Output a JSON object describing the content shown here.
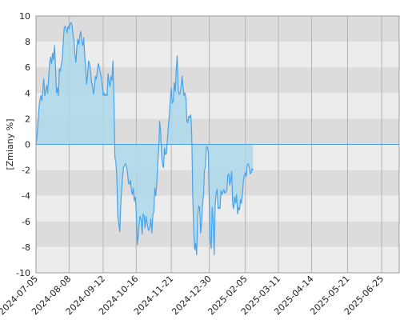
{
  "chart_data": {
    "type": "area",
    "title": "",
    "xlabel": "",
    "ylabel": "[Zmiany %]",
    "ylim": [
      -10,
      10
    ],
    "y_ticks": [
      -10,
      -8,
      -6,
      -4,
      -2,
      0,
      2,
      4,
      6,
      8,
      10
    ],
    "x_ticks": [
      "2024-07-05",
      "2024-08-08",
      "2024-09-12",
      "2024-10-16",
      "2024-11-21",
      "2024-12-30",
      "2025-02-05",
      "2025-03-11",
      "2025-04-14",
      "2025-05-21",
      "2025-06-25"
    ],
    "x_range": [
      "2024-07-05",
      "2025-07-13"
    ],
    "grid": "vertical lines at ticks, alternating horizontal bands",
    "colors": {
      "line": "#4aa3e8",
      "fill": "#add8ea",
      "band_dark": "#dcdcdc",
      "band_light": "#ececec",
      "grid": "#b4b4b4"
    },
    "series": [
      {
        "values": [
          [
            "2024-07-05",
            0.0
          ],
          [
            "2024-07-06",
            0.6
          ],
          [
            "2024-07-07",
            1.6
          ],
          [
            "2024-07-08",
            2.8
          ],
          [
            "2024-07-09",
            3.5
          ],
          [
            "2024-07-10",
            3.8
          ],
          [
            "2024-07-11",
            3.4
          ],
          [
            "2024-07-12",
            4.3
          ],
          [
            "2024-07-13",
            5.1
          ],
          [
            "2024-07-14",
            3.8
          ],
          [
            "2024-07-15",
            4.2
          ],
          [
            "2024-07-16",
            4.6
          ],
          [
            "2024-07-17",
            4.0
          ],
          [
            "2024-07-18",
            5.2
          ],
          [
            "2024-07-19",
            6.3
          ],
          [
            "2024-07-20",
            6.8
          ],
          [
            "2024-07-21",
            6.3
          ],
          [
            "2024-07-22",
            7.1
          ],
          [
            "2024-07-23",
            6.6
          ],
          [
            "2024-07-24",
            7.7
          ],
          [
            "2024-07-25",
            6.1
          ],
          [
            "2024-07-26",
            4.0
          ],
          [
            "2024-07-27",
            4.4
          ],
          [
            "2024-07-28",
            3.8
          ],
          [
            "2024-07-29",
            5.9
          ],
          [
            "2024-07-30",
            5.7
          ],
          [
            "2024-07-31",
            6.2
          ],
          [
            "2024-08-01",
            6.7
          ],
          [
            "2024-08-02",
            8.0
          ],
          [
            "2024-08-03",
            9.1
          ],
          [
            "2024-08-04",
            9.2
          ],
          [
            "2024-08-05",
            9.0
          ],
          [
            "2024-08-06",
            8.7
          ],
          [
            "2024-08-07",
            9.2
          ],
          [
            "2024-08-08",
            9.0
          ],
          [
            "2024-08-09",
            9.4
          ],
          [
            "2024-08-10",
            9.5
          ],
          [
            "2024-08-11",
            9.3
          ],
          [
            "2024-08-12",
            8.5
          ],
          [
            "2024-08-13",
            8.1
          ],
          [
            "2024-08-14",
            7.0
          ],
          [
            "2024-08-15",
            6.4
          ],
          [
            "2024-08-16",
            7.6
          ],
          [
            "2024-08-17",
            8.2
          ],
          [
            "2024-08-18",
            7.8
          ],
          [
            "2024-08-19",
            8.5
          ],
          [
            "2024-08-20",
            8.8
          ],
          [
            "2024-08-21",
            8.0
          ],
          [
            "2024-08-22",
            7.7
          ],
          [
            "2024-08-23",
            8.3
          ],
          [
            "2024-08-24",
            7.0
          ],
          [
            "2024-08-25",
            5.9
          ],
          [
            "2024-08-26",
            4.7
          ],
          [
            "2024-08-27",
            5.4
          ],
          [
            "2024-08-28",
            6.5
          ],
          [
            "2024-08-29",
            6.3
          ],
          [
            "2024-08-30",
            5.7
          ],
          [
            "2024-08-31",
            4.8
          ],
          [
            "2024-09-01",
            4.6
          ],
          [
            "2024-09-02",
            3.9
          ],
          [
            "2024-09-03",
            4.4
          ],
          [
            "2024-09-04",
            5.3
          ],
          [
            "2024-09-05",
            5.1
          ],
          [
            "2024-09-06",
            5.8
          ],
          [
            "2024-09-07",
            6.3
          ],
          [
            "2024-09-08",
            6.0
          ],
          [
            "2024-09-09",
            5.6
          ],
          [
            "2024-09-10",
            5.3
          ],
          [
            "2024-09-11",
            4.6
          ],
          [
            "2024-09-12",
            3.8
          ],
          [
            "2024-09-13",
            4.0
          ],
          [
            "2024-09-14",
            3.8
          ],
          [
            "2024-09-15",
            3.9
          ],
          [
            "2024-09-16",
            3.8
          ],
          [
            "2024-09-17",
            5.5
          ],
          [
            "2024-09-18",
            4.9
          ],
          [
            "2024-09-19",
            4.5
          ],
          [
            "2024-09-20",
            5.3
          ],
          [
            "2024-09-21",
            5.0
          ],
          [
            "2024-09-22",
            6.5
          ],
          [
            "2024-09-23",
            3.5
          ],
          [
            "2024-09-24",
            -1.0
          ],
          [
            "2024-09-25",
            -1.4
          ],
          [
            "2024-09-26",
            -2.5
          ],
          [
            "2024-09-27",
            -5.6
          ],
          [
            "2024-09-28",
            -6.2
          ],
          [
            "2024-09-29",
            -6.8
          ],
          [
            "2024-09-30",
            -4.8
          ],
          [
            "2024-10-01",
            -3.4
          ],
          [
            "2024-10-02",
            -2.4
          ],
          [
            "2024-10-03",
            -1.8
          ],
          [
            "2024-10-04",
            -1.6
          ],
          [
            "2024-10-05",
            -1.5
          ],
          [
            "2024-10-06",
            -1.8
          ],
          [
            "2024-10-07",
            -2.2
          ],
          [
            "2024-10-08",
            -3.0
          ],
          [
            "2024-10-09",
            -3.1
          ],
          [
            "2024-10-10",
            -2.8
          ],
          [
            "2024-10-11",
            -3.6
          ],
          [
            "2024-10-12",
            -3.9
          ],
          [
            "2024-10-13",
            -3.4
          ],
          [
            "2024-10-14",
            -4.4
          ],
          [
            "2024-10-15",
            -4.1
          ],
          [
            "2024-10-16",
            -5.5
          ],
          [
            "2024-10-17",
            -7.8
          ],
          [
            "2024-10-18",
            -7.1
          ],
          [
            "2024-10-19",
            -6.2
          ],
          [
            "2024-10-20",
            -5.6
          ],
          [
            "2024-10-21",
            -5.9
          ],
          [
            "2024-10-22",
            -7.0
          ],
          [
            "2024-10-23",
            -5.4
          ],
          [
            "2024-10-24",
            -5.6
          ],
          [
            "2024-10-25",
            -6.5
          ],
          [
            "2024-10-26",
            -5.6
          ],
          [
            "2024-10-27",
            -6.1
          ],
          [
            "2024-10-28",
            -6.6
          ],
          [
            "2024-10-29",
            -6.7
          ],
          [
            "2024-10-30",
            -6.4
          ],
          [
            "2024-10-31",
            -5.8
          ],
          [
            "2024-11-01",
            -6.9
          ],
          [
            "2024-11-02",
            -5.5
          ],
          [
            "2024-11-03",
            -5.2
          ],
          [
            "2024-11-04",
            -3.4
          ],
          [
            "2024-11-05",
            -4.0
          ],
          [
            "2024-11-06",
            -3.1
          ],
          [
            "2024-11-07",
            -1.6
          ],
          [
            "2024-11-08",
            -0.4
          ],
          [
            "2024-11-09",
            1.8
          ],
          [
            "2024-11-10",
            1.0
          ],
          [
            "2024-11-11",
            -0.9
          ],
          [
            "2024-11-12",
            -1.6
          ],
          [
            "2024-11-13",
            -1.8
          ],
          [
            "2024-11-14",
            -0.3
          ],
          [
            "2024-11-15",
            -0.8
          ],
          [
            "2024-11-16",
            -0.7
          ],
          [
            "2024-11-17",
            0.4
          ],
          [
            "2024-11-18",
            1.4
          ],
          [
            "2024-11-19",
            2.4
          ],
          [
            "2024-11-20",
            3.6
          ],
          [
            "2024-11-21",
            4.4
          ],
          [
            "2024-11-22",
            3.2
          ],
          [
            "2024-11-23",
            3.4
          ],
          [
            "2024-11-24",
            4.8
          ],
          [
            "2024-11-25",
            4.1
          ],
          [
            "2024-11-26",
            5.8
          ],
          [
            "2024-11-27",
            6.9
          ],
          [
            "2024-11-28",
            4.2
          ],
          [
            "2024-11-29",
            3.9
          ],
          [
            "2024-11-30",
            4.0
          ],
          [
            "2024-12-01",
            4.5
          ],
          [
            "2024-12-02",
            5.3
          ],
          [
            "2024-12-03",
            4.5
          ],
          [
            "2024-12-04",
            3.8
          ],
          [
            "2024-12-05",
            4.0
          ],
          [
            "2024-12-06",
            3.6
          ],
          [
            "2024-12-07",
            1.8
          ],
          [
            "2024-12-08",
            1.7
          ],
          [
            "2024-12-09",
            2.2
          ],
          [
            "2024-12-10",
            2.1
          ],
          [
            "2024-12-11",
            2.3
          ],
          [
            "2024-12-12",
            0.7
          ],
          [
            "2024-12-13",
            -4.2
          ],
          [
            "2024-12-14",
            -6.7
          ],
          [
            "2024-12-15",
            -8.2
          ],
          [
            "2024-12-16",
            -7.7
          ],
          [
            "2024-12-17",
            -8.6
          ],
          [
            "2024-12-18",
            -5.8
          ],
          [
            "2024-12-19",
            -4.8
          ],
          [
            "2024-12-20",
            -4.9
          ],
          [
            "2024-12-21",
            -6.9
          ],
          [
            "2024-12-22",
            -6.2
          ],
          [
            "2024-12-23",
            -4.7
          ],
          [
            "2024-12-24",
            -3.9
          ],
          [
            "2024-12-25",
            -2.0
          ],
          [
            "2024-12-26",
            -1.8
          ],
          [
            "2024-12-27",
            -0.2
          ],
          [
            "2024-12-28",
            -0.2
          ],
          [
            "2024-12-29",
            -0.6
          ],
          [
            "2024-12-30",
            -4.8
          ],
          [
            "2024-12-31",
            -7.6
          ],
          [
            "2025-01-01",
            -8.1
          ],
          [
            "2025-01-02",
            -4.9
          ],
          [
            "2025-01-03",
            -6.1
          ],
          [
            "2025-01-04",
            -8.6
          ],
          [
            "2025-01-05",
            -4.7
          ],
          [
            "2025-01-06",
            -3.8
          ],
          [
            "2025-01-07",
            -3.5
          ],
          [
            "2025-01-08",
            -5.0
          ],
          [
            "2025-01-09",
            -4.9
          ],
          [
            "2025-01-10",
            -5.0
          ],
          [
            "2025-01-11",
            -3.6
          ],
          [
            "2025-01-12",
            -3.9
          ],
          [
            "2025-01-13",
            -3.7
          ],
          [
            "2025-01-14",
            -3.5
          ],
          [
            "2025-01-15",
            -3.8
          ],
          [
            "2025-01-16",
            -3.7
          ],
          [
            "2025-01-17",
            -3.6
          ],
          [
            "2025-01-18",
            -2.4
          ],
          [
            "2025-01-19",
            -2.3
          ],
          [
            "2025-01-20",
            -3.2
          ],
          [
            "2025-01-21",
            -2.8
          ],
          [
            "2025-01-22",
            -2.1
          ],
          [
            "2025-01-23",
            -4.7
          ],
          [
            "2025-01-24",
            -5.0
          ],
          [
            "2025-01-25",
            -4.1
          ],
          [
            "2025-01-26",
            -4.6
          ],
          [
            "2025-01-27",
            -3.9
          ],
          [
            "2025-01-28",
            -5.4
          ],
          [
            "2025-01-29",
            -4.9
          ],
          [
            "2025-01-30",
            -5.1
          ],
          [
            "2025-01-31",
            -4.3
          ],
          [
            "2025-02-01",
            -4.6
          ],
          [
            "2025-02-02",
            -3.9
          ],
          [
            "2025-02-03",
            -2.8
          ],
          [
            "2025-02-04",
            -2.4
          ],
          [
            "2025-02-05",
            -2.2
          ],
          [
            "2025-02-06",
            -2.5
          ],
          [
            "2025-02-07",
            -1.6
          ],
          [
            "2025-02-08",
            -1.5
          ],
          [
            "2025-02-09",
            -1.8
          ],
          [
            "2025-02-10",
            -2.3
          ],
          [
            "2025-02-11",
            -2.2
          ],
          [
            "2025-02-12",
            -1.9
          ],
          [
            "2025-02-13",
            -2.0
          ]
        ]
      }
    ]
  }
}
